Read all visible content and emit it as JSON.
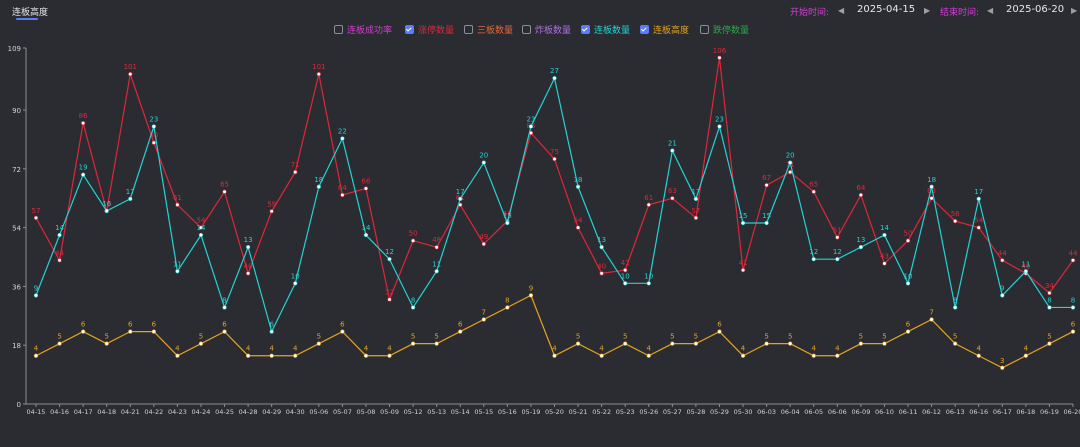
{
  "tab": {
    "label": "连板高度"
  },
  "date_range": {
    "start_label": "开始时间:",
    "start_value": "2025-04-15",
    "end_label": "结束时间:",
    "end_value": "2025-06-20"
  },
  "legend": [
    {
      "label": "连板成功率",
      "checked": false,
      "color": "#d63bd8"
    },
    {
      "label": "涨停数量",
      "checked": true,
      "color": "#e0263a"
    },
    {
      "label": "三板数量",
      "checked": false,
      "color": "#e8663a"
    },
    {
      "label": "炸板数量",
      "checked": false,
      "color": "#b06fe0"
    },
    {
      "label": "连板数量",
      "checked": true,
      "color": "#22d3d6"
    },
    {
      "label": "连板高度",
      "checked": true,
      "color": "#e4a21f"
    },
    {
      "label": "跌停数量",
      "checked": false,
      "color": "#2aa84a"
    }
  ],
  "chart_data": {
    "type": "line",
    "yticks": [
      0,
      18,
      36,
      54,
      72,
      90,
      109
    ],
    "ylim": [
      0,
      109
    ],
    "categories": [
      "04-15",
      "04-16",
      "04-17",
      "04-18",
      "04-21",
      "04-22",
      "04-23",
      "04-24",
      "04-25",
      "04-28",
      "04-29",
      "04-30",
      "05-06",
      "05-07",
      "05-08",
      "05-09",
      "05-12",
      "05-13",
      "05-14",
      "05-15",
      "05-16",
      "05-19",
      "05-20",
      "05-21",
      "05-22",
      "05-23",
      "05-26",
      "05-27",
      "05-28",
      "05-29",
      "05-30",
      "06-03",
      "06-04",
      "06-05",
      "06-06",
      "06-09",
      "06-10",
      "06-11",
      "06-12",
      "06-13",
      "06-16",
      "06-17",
      "06-18",
      "06-19",
      "06-20"
    ],
    "series": [
      {
        "name": "涨停数量",
        "axis": "left",
        "color": "#e0263a",
        "values": [
          57,
          44,
          86,
          59,
          101,
          80,
          61,
          54,
          65,
          40,
          59,
          71,
          101,
          64,
          66,
          32,
          50,
          48,
          61,
          49,
          56,
          83,
          75,
          54,
          40,
          41,
          61,
          63,
          57,
          106,
          41,
          67,
          71,
          65,
          51,
          64,
          43,
          50,
          63,
          56,
          54,
          44,
          40,
          34,
          44
        ]
      },
      {
        "name": "连板数量",
        "axis": "right",
        "color": "#22d3d6",
        "values": [
          9,
          14,
          19,
          16,
          17,
          23,
          11,
          14,
          8,
          13,
          6,
          10,
          18,
          22,
          14,
          12,
          8,
          11,
          17,
          20,
          15,
          23,
          27,
          18,
          13,
          10,
          10,
          21,
          17,
          23,
          15,
          15,
          20,
          12,
          12,
          13,
          14,
          10,
          18,
          8,
          17,
          9,
          11,
          8,
          8
        ]
      },
      {
        "name": "连板高度",
        "axis": "right",
        "color": "#e4a21f",
        "values": [
          4,
          5,
          6,
          5,
          6,
          6,
          4,
          5,
          6,
          4,
          4,
          4,
          5,
          6,
          4,
          4,
          5,
          5,
          6,
          7,
          8,
          9,
          4,
          5,
          4,
          5,
          4,
          5,
          5,
          6,
          4,
          5,
          5,
          4,
          4,
          5,
          5,
          6,
          7,
          5,
          4,
          3,
          4,
          5,
          6
        ]
      }
    ],
    "right_axis_max": 29.5
  }
}
